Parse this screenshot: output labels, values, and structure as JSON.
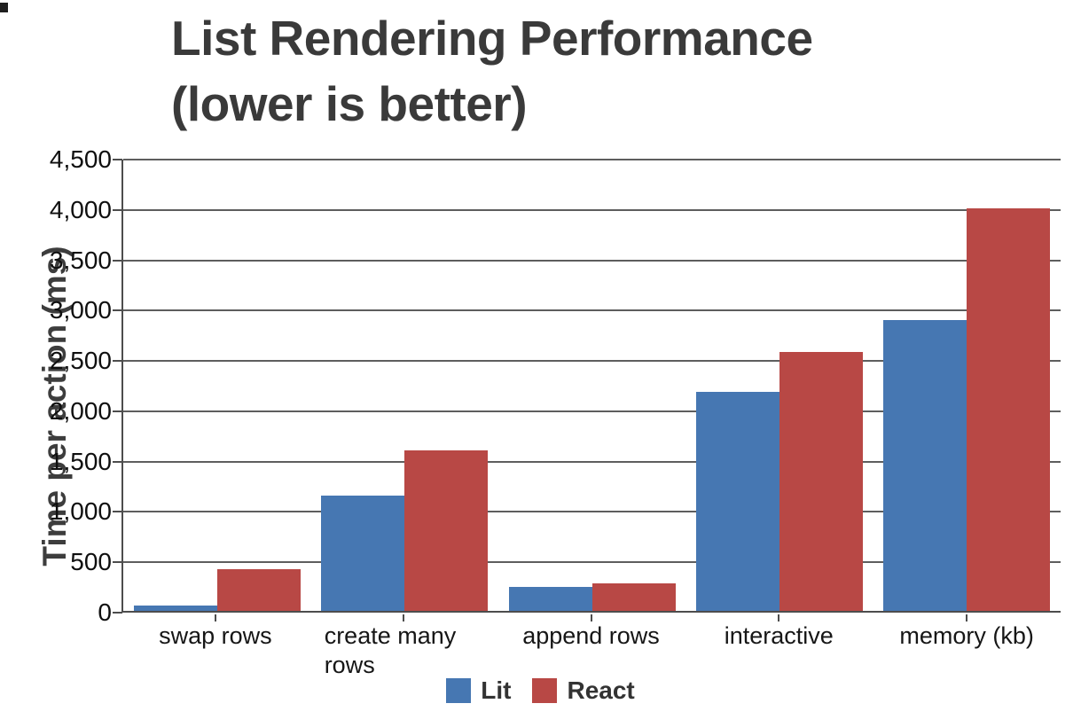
{
  "chart_data": {
    "type": "bar",
    "title": "List Rendering Performance (lower is better)",
    "title_lines": [
      "List Rendering Performance",
      "(lower is better)"
    ],
    "ylabel": "Time per action (ms)",
    "xlabel": "",
    "categories": [
      "swap rows",
      "create many rows",
      "append rows",
      "interactive",
      "memory (kb)"
    ],
    "series": [
      {
        "name": "Lit",
        "color": "#4677b2",
        "values": [
          50,
          1145,
          240,
          2175,
          2890
        ]
      },
      {
        "name": "React",
        "color": "#b84845",
        "values": [
          415,
          1590,
          275,
          2575,
          4000
        ]
      }
    ],
    "ylim": [
      0,
      4500
    ],
    "ytick_step": 500,
    "ytick_labels": [
      "0",
      "500",
      "1,000",
      "1,500",
      "2,000",
      "2,500",
      "3,000",
      "3,500",
      "4,000",
      "4,500"
    ],
    "grid": true,
    "legend_position": "bottom"
  },
  "colors": {
    "background": "#ffffff",
    "title_text": "#3a3a3a",
    "axis": "#4d4d4d",
    "gridline": "#5e5e5e",
    "tick_text": "#0f0f0f",
    "category_text": "#161616",
    "legend_text": "#333333",
    "lit_blue": "#4677b2",
    "react_red": "#b84845"
  }
}
